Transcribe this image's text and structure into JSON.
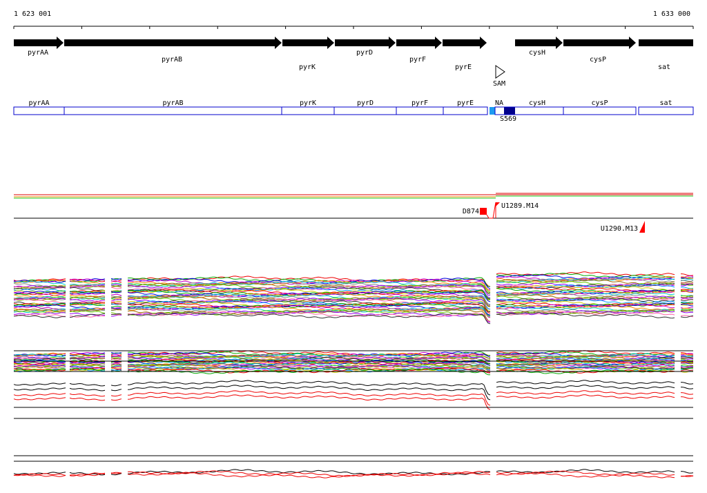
{
  "ruler": {
    "start": "1 623 001",
    "end": "1 633 000"
  },
  "genes": [
    "pyrAA",
    "pyrAB",
    "pyrK",
    "pyrD",
    "pyrF",
    "pyrE",
    "cysH",
    "cysP",
    "sat"
  ],
  "terminator": "SAM",
  "segments": [
    "pyrAA",
    "pyrAB",
    "pyrK",
    "pyrD",
    "pyrF",
    "pyrE",
    "NA",
    "cysH",
    "cysP",
    "sat"
  ],
  "segment_note": "S569",
  "markers": [
    "D874",
    "U1289.M14",
    "U1290.M13"
  ]
}
